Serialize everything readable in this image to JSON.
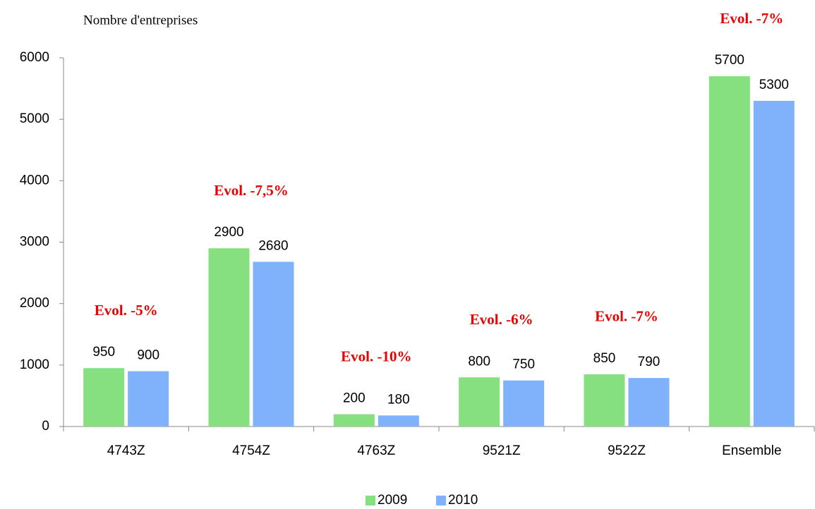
{
  "chart_data": {
    "type": "bar",
    "y_axis_label": "Nombre d'entreprises",
    "categories": [
      "4743Z",
      "4754Z",
      "4763Z",
      "9521Z",
      "9522Z",
      "Ensemble"
    ],
    "series": [
      {
        "name": "2009",
        "color": "#86e07f",
        "values": [
          950,
          2900,
          200,
          800,
          850,
          5700
        ]
      },
      {
        "name": "2010",
        "color": "#80b2fb",
        "values": [
          900,
          2680,
          180,
          750,
          790,
          5300
        ]
      }
    ],
    "annotations": [
      "Evol. -5%",
      "Evol. -7,5%",
      "Evol. -10%",
      "Evol. -6%",
      "Evol. -7%",
      "Evol. -7%"
    ],
    "ylim": [
      0,
      6000
    ],
    "yticks": [
      0,
      1000,
      2000,
      3000,
      4000,
      5000,
      6000
    ],
    "grid": false,
    "legend": "bottom"
  }
}
